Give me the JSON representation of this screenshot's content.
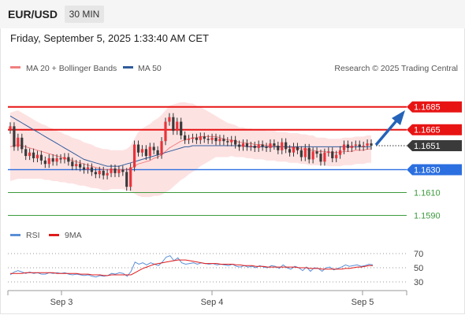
{
  "header": {
    "symbol": "EUR/USD",
    "timeframe": "30 MIN"
  },
  "datetime": "Friday, September 5, 2025 1:33:40 AM CET",
  "copyright": "Research © 2025 Trading Central",
  "legend": {
    "ma20": {
      "label": "MA 20 + Bollinger Bands",
      "color": "#f08080"
    },
    "ma50": {
      "label": "MA 50",
      "color": "#2f5c9c"
    },
    "rsi": {
      "label": "RSI",
      "color": "#5b8fd6"
    },
    "ma9": {
      "label": "9MA",
      "color": "#e01b1b"
    }
  },
  "chart_data": [
    {
      "type": "candlestick",
      "x_ticks": [
        "Sep 3",
        "Sep 4",
        "Sep 5"
      ],
      "ylim": [
        1.157,
        1.1705
      ],
      "last_price": 1.1651,
      "levels": [
        {
          "value": "1.1685",
          "kind": "resistance",
          "color": "#e81414"
        },
        {
          "value": "1.1665",
          "kind": "resistance",
          "color": "#e81414"
        },
        {
          "value": "1.1630",
          "kind": "support",
          "color": "#2b6fe0"
        },
        {
          "value": "1.1610",
          "kind": "target",
          "color": "#3c9a3c"
        },
        {
          "value": "1.1590",
          "kind": "target",
          "color": "#3c9a3c"
        }
      ],
      "close": [
        1.1668,
        1.165,
        1.1658,
        1.1648,
        1.1642,
        1.1645,
        1.164,
        1.1643,
        1.1638,
        1.1635,
        1.164,
        1.1637,
        1.164,
        1.1639,
        1.1641,
        1.1637,
        1.1633,
        1.1635,
        1.1632,
        1.163,
        1.1632,
        1.1628,
        1.1626,
        1.1629,
        1.1625,
        1.1627,
        1.1631,
        1.1627,
        1.163,
        1.1628,
        1.1615,
        1.1632,
        1.1652,
        1.1645,
        1.1648,
        1.1642,
        1.165,
        1.1647,
        1.1643,
        1.1655,
        1.1672,
        1.1676,
        1.1664,
        1.1672,
        1.166,
        1.1656,
        1.1657,
        1.1658,
        1.1656,
        1.1659,
        1.1657,
        1.1656,
        1.1658,
        1.1655,
        1.1657,
        1.1655,
        1.1654,
        1.1656,
        1.1652,
        1.165,
        1.1653,
        1.165,
        1.1651,
        1.1649,
        1.1652,
        1.165,
        1.1649,
        1.1653,
        1.1651,
        1.1647,
        1.1654,
        1.1648,
        1.1645,
        1.165,
        1.1647,
        1.1641,
        1.1649,
        1.1639,
        1.1646,
        1.1644,
        1.1637,
        1.1645,
        1.1646,
        1.164,
        1.1643,
        1.1647,
        1.1652,
        1.1649,
        1.1651,
        1.1652,
        1.165,
        1.1651,
        1.1653,
        1.1651
      ],
      "ma20": [
        1.165,
        1.1651,
        1.1652,
        1.1651,
        1.165,
        1.1649,
        1.1648,
        1.1647,
        1.1646,
        1.1645,
        1.1644,
        1.1643,
        1.1642,
        1.1641,
        1.164,
        1.1639,
        1.1638,
        1.1637,
        1.1636,
        1.1635,
        1.1634,
        1.1633,
        1.1632,
        1.1631,
        1.163,
        1.163,
        1.163,
        1.163,
        1.163,
        1.163,
        1.163,
        1.1631,
        1.1633,
        1.1635,
        1.1636,
        1.1637,
        1.1638,
        1.164,
        1.1641,
        1.1643,
        1.1646,
        1.1649,
        1.1651,
        1.1653,
        1.1655,
        1.1656,
        1.1657,
        1.1658,
        1.1658,
        1.1659,
        1.1659,
        1.1659,
        1.1659,
        1.1659,
        1.1658,
        1.1657,
        1.1656,
        1.1656,
        1.1655,
        1.1654,
        1.1654,
        1.1653,
        1.1653,
        1.1652,
        1.1652,
        1.1652,
        1.1651,
        1.1651,
        1.1651,
        1.165,
        1.165,
        1.165,
        1.1649,
        1.1649,
        1.1649,
        1.1648,
        1.1648,
        1.1647,
        1.1647,
        1.1646,
        1.1646,
        1.1646,
        1.1645,
        1.1645,
        1.1645,
        1.1645,
        1.1646,
        1.1646,
        1.1646,
        1.1647,
        1.1647,
        1.1647,
        1.1648,
        1.1648
      ],
      "ma50": [
        1.1677,
        1.1675,
        1.1673,
        1.1671,
        1.1669,
        1.1667,
        1.1665,
        1.1663,
        1.1661,
        1.1659,
        1.1657,
        1.1655,
        1.1653,
        1.1651,
        1.1649,
        1.1647,
        1.1645,
        1.1643,
        1.1641,
        1.1639,
        1.1638,
        1.1637,
        1.1636,
        1.1635,
        1.1634,
        1.1633,
        1.1633,
        1.1633,
        1.1633,
        1.1634,
        1.1635,
        1.1636,
        1.1637,
        1.1638,
        1.1639,
        1.164,
        1.1641,
        1.1642,
        1.1643,
        1.1644,
        1.1645,
        1.1646,
        1.1647,
        1.1648,
        1.1649,
        1.165,
        1.165,
        1.1651,
        1.1651,
        1.1651,
        1.1651,
        1.1651,
        1.1651,
        1.1651,
        1.1651,
        1.1651,
        1.1651,
        1.1651,
        1.1651,
        1.1651,
        1.1651,
        1.165,
        1.165,
        1.165,
        1.165,
        1.165,
        1.165,
        1.165,
        1.165,
        1.165,
        1.165,
        1.165,
        1.165,
        1.165,
        1.165,
        1.165,
        1.165,
        1.165,
        1.165,
        1.165,
        1.165,
        1.165,
        1.165,
        1.165,
        1.165,
        1.165,
        1.165,
        1.165,
        1.165,
        1.165,
        1.165,
        1.165,
        1.165,
        1.165
      ],
      "band_width": [
        0.003,
        0.003,
        0.003,
        0.0029,
        0.0028,
        0.0027,
        0.0026,
        0.0025,
        0.0024,
        0.0024,
        0.0023,
        0.0023,
        0.0022,
        0.0022,
        0.0021,
        0.0021,
        0.002,
        0.002,
        0.002,
        0.0019,
        0.0019,
        0.0019,
        0.0018,
        0.0018,
        0.0018,
        0.0018,
        0.0017,
        0.0017,
        0.0017,
        0.0017,
        0.0018,
        0.002,
        0.0024,
        0.0028,
        0.003,
        0.0031,
        0.0032,
        0.0033,
        0.0034,
        0.0035,
        0.0036,
        0.0037,
        0.0036,
        0.0035,
        0.0034,
        0.0033,
        0.0031,
        0.003,
        0.0028,
        0.0026,
        0.0024,
        0.0022,
        0.002,
        0.0018,
        0.0017,
        0.0016,
        0.0015,
        0.0014,
        0.0014,
        0.0013,
        0.0013,
        0.0013,
        0.0013,
        0.0013,
        0.0013,
        0.0013,
        0.0013,
        0.0013,
        0.0013,
        0.0013,
        0.0013,
        0.0013,
        0.0013,
        0.0013,
        0.0013,
        0.0013,
        0.0013,
        0.0013,
        0.0013,
        0.0012,
        0.0012,
        0.0012,
        0.0012,
        0.0012,
        0.0012,
        0.0012,
        0.0012,
        0.0012,
        0.0012,
        0.0012,
        0.0012,
        0.0012,
        0.0012,
        0.0012
      ]
    },
    {
      "type": "line",
      "name": "RSI",
      "ylim": [
        20,
        80
      ],
      "y_ticks": [
        "70",
        "50",
        "30"
      ],
      "rsi": [
        40,
        44,
        46,
        44,
        42,
        44,
        42,
        43,
        41,
        41,
        43,
        42,
        43,
        42,
        43,
        41,
        40,
        41,
        40,
        39,
        40,
        38,
        37,
        39,
        38,
        39,
        42,
        41,
        43,
        42,
        38,
        45,
        58,
        55,
        57,
        54,
        57,
        55,
        53,
        58,
        65,
        67,
        60,
        64,
        57,
        55,
        56,
        57,
        55,
        57,
        56,
        55,
        56,
        54,
        55,
        54,
        53,
        55,
        52,
        51,
        53,
        51,
        52,
        50,
        53,
        51,
        50,
        53,
        52,
        49,
        54,
        50,
        48,
        52,
        50,
        46,
        51,
        45,
        50,
        49,
        45,
        50,
        51,
        47,
        49,
        51,
        54,
        52,
        53,
        54,
        52,
        53,
        55,
        54
      ],
      "ma9": [
        42,
        42,
        42,
        42,
        43,
        43,
        43,
        43,
        43,
        43,
        43,
        43,
        42,
        42,
        42,
        42,
        42,
        42,
        41,
        41,
        41,
        40,
        40,
        40,
        39,
        39,
        40,
        40,
        40,
        40,
        40,
        40,
        43,
        46,
        49,
        51,
        53,
        55,
        56,
        57,
        58,
        59,
        60,
        61,
        61,
        61,
        60,
        59,
        58,
        57,
        56,
        56,
        56,
        56,
        55,
        55,
        55,
        55,
        54,
        54,
        53,
        53,
        53,
        52,
        52,
        52,
        51,
        51,
        51,
        51,
        51,
        51,
        51,
        51,
        50,
        50,
        50,
        49,
        49,
        49,
        48,
        48,
        48,
        48,
        48,
        48,
        49,
        49,
        50,
        51,
        51,
        52,
        53,
        53
      ]
    }
  ]
}
